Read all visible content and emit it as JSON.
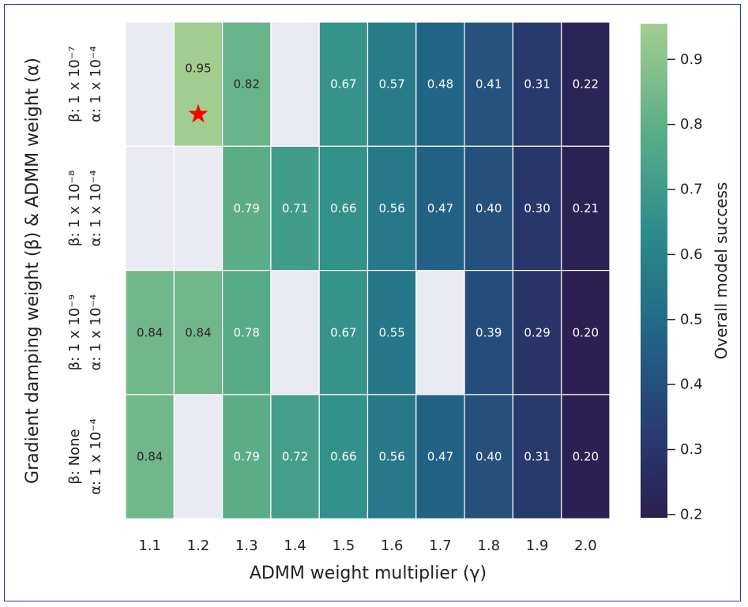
{
  "chart_data": {
    "type": "heatmap",
    "xlabel": "ADMM weight multiplier (γ)",
    "ylabel": "Gradient damping weight (β) & ADMM weight (α)",
    "x": [
      "1.1",
      "1.2",
      "1.3",
      "1.4",
      "1.5",
      "1.6",
      "1.7",
      "1.8",
      "1.9",
      "2.0"
    ],
    "y": [
      {
        "beta": "β: 1 x 10⁻⁷",
        "alpha": "α: 1 x 10⁻⁴"
      },
      {
        "beta": "β: 1 x 10⁻⁸",
        "alpha": "α: 1 x 10⁻⁴"
      },
      {
        "beta": "β: 1 x 10⁻⁹",
        "alpha": "α: 1 x 10⁻⁴"
      },
      {
        "beta": "β: None",
        "alpha": "α: 1 x 10⁻⁴"
      }
    ],
    "values": [
      [
        null,
        0.95,
        0.82,
        null,
        0.67,
        0.57,
        0.48,
        0.41,
        0.31,
        0.22
      ],
      [
        null,
        null,
        0.79,
        0.71,
        0.66,
        0.56,
        0.47,
        0.4,
        0.3,
        0.21
      ],
      [
        0.84,
        0.84,
        0.78,
        null,
        0.67,
        0.55,
        null,
        0.39,
        0.29,
        0.2
      ],
      [
        0.84,
        null,
        0.79,
        0.72,
        0.66,
        0.56,
        0.47,
        0.4,
        0.31,
        0.2
      ]
    ],
    "highlight": {
      "row": 0,
      "col": 1,
      "marker": "red-star"
    },
    "colorbar": {
      "label": "Overall model success",
      "ticks": [
        "0.2",
        "0.3",
        "0.4",
        "0.5",
        "0.6",
        "0.7",
        "0.8",
        "0.9"
      ],
      "range": [
        0.195,
        0.955
      ],
      "colormap": "crest"
    },
    "colors": {
      "missing": "#eaeaf2",
      "star": "#ff0000",
      "frame": "#2233bb"
    }
  }
}
